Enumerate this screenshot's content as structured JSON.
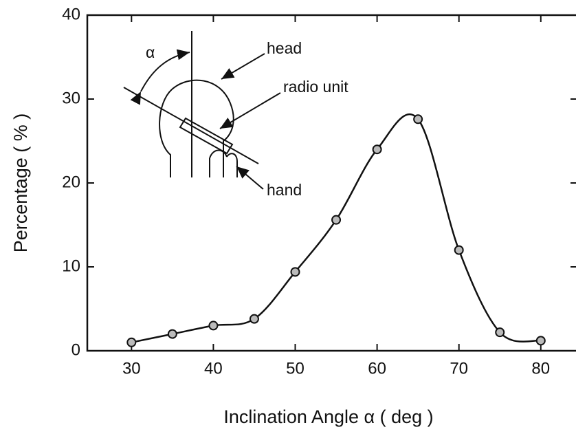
{
  "chart_data": {
    "type": "line",
    "x_label": "Inclination Angle α ( deg )",
    "y_label": "Percentage ( % )",
    "x": [
      30,
      35,
      40,
      45,
      50,
      55,
      60,
      65,
      70,
      75,
      80
    ],
    "series": [
      {
        "color": "#111111",
        "values": [
          1.0,
          2.0,
          3.0,
          3.8,
          9.4,
          15.6,
          24.0,
          27.6,
          12.0,
          2.2,
          1.2
        ]
      }
    ],
    "xlim": [
      24.6,
      84.3
    ],
    "xticks": [
      30,
      40,
      50,
      60,
      70,
      80
    ],
    "ylim": [
      0,
      40
    ],
    "yticks": [
      0,
      10,
      20,
      30,
      40
    ],
    "annotations": {
      "angle": "α",
      "head": "head",
      "radio": "radio unit",
      "hand": "hand"
    }
  }
}
